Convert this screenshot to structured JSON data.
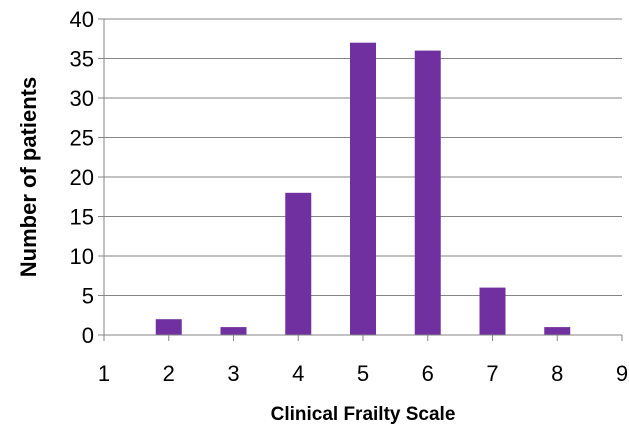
{
  "chart_data": {
    "type": "bar",
    "x": [
      2,
      3,
      4,
      5,
      6,
      7,
      8
    ],
    "values": [
      2,
      1,
      18,
      37,
      36,
      6,
      1
    ],
    "xlim": [
      1,
      9
    ],
    "ylim": [
      0,
      40
    ],
    "x_ticks": [
      "1",
      "2",
      "3",
      "4",
      "5",
      "6",
      "7",
      "8",
      "9"
    ],
    "y_ticks": [
      "0",
      "5",
      "10",
      "15",
      "20",
      "25",
      "30",
      "35",
      "40"
    ],
    "xlabel": "Clinical Frailty Scale",
    "ylabel": "Number of patients",
    "grid": true,
    "legend": false,
    "colors": {
      "bar": "#7030A0",
      "grid": "#868686",
      "axis": "#868686"
    }
  }
}
